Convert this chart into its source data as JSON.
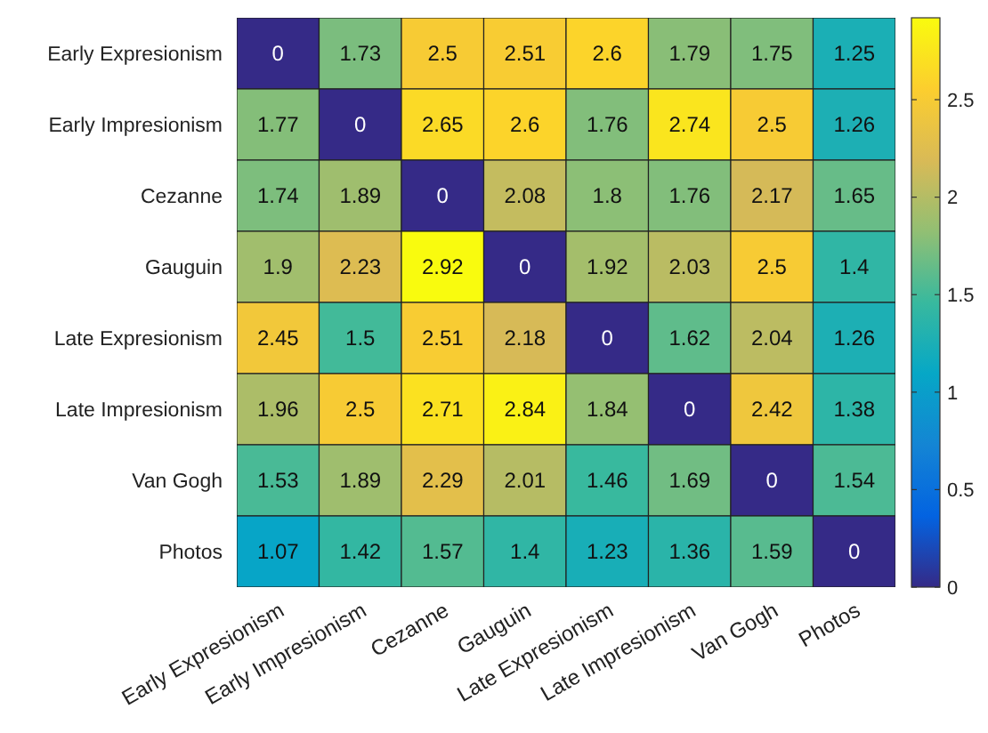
{
  "chart_data": {
    "type": "heatmap",
    "categories": [
      "Early Expresionism",
      "Early Impresionism",
      "Cezanne",
      "Gauguin",
      "Late Expresionism",
      "Late Impresionism",
      "Van Gogh",
      "Photos"
    ],
    "y_categories": [
      "Early Expresionism",
      "Early Impresionism",
      "Cezanne",
      "Gauguin",
      "Late Expresionism",
      "Late Impresionism",
      "Van Gogh",
      "Photos"
    ],
    "cells": [
      [
        0,
        1.73,
        2.5,
        2.51,
        2.6,
        1.79,
        1.75,
        1.25
      ],
      [
        1.77,
        0,
        2.65,
        2.6,
        1.76,
        2.74,
        2.5,
        1.26
      ],
      [
        1.74,
        1.89,
        0,
        2.08,
        1.8,
        1.76,
        2.17,
        1.65
      ],
      [
        1.9,
        2.23,
        2.92,
        0,
        1.92,
        2.03,
        2.5,
        1.4
      ],
      [
        2.45,
        1.5,
        2.51,
        2.18,
        0,
        1.62,
        2.04,
        1.26
      ],
      [
        1.96,
        2.5,
        2.71,
        2.84,
        1.84,
        0,
        2.42,
        1.38
      ],
      [
        1.53,
        1.89,
        2.29,
        2.01,
        1.46,
        1.69,
        0,
        1.54
      ],
      [
        1.07,
        1.42,
        1.57,
        1.4,
        1.23,
        1.36,
        1.59,
        0
      ]
    ],
    "clim": [
      0,
      2.92
    ],
    "cticks": [
      0,
      0.5,
      1,
      1.5,
      2,
      2.5
    ],
    "data_labels": true
  }
}
